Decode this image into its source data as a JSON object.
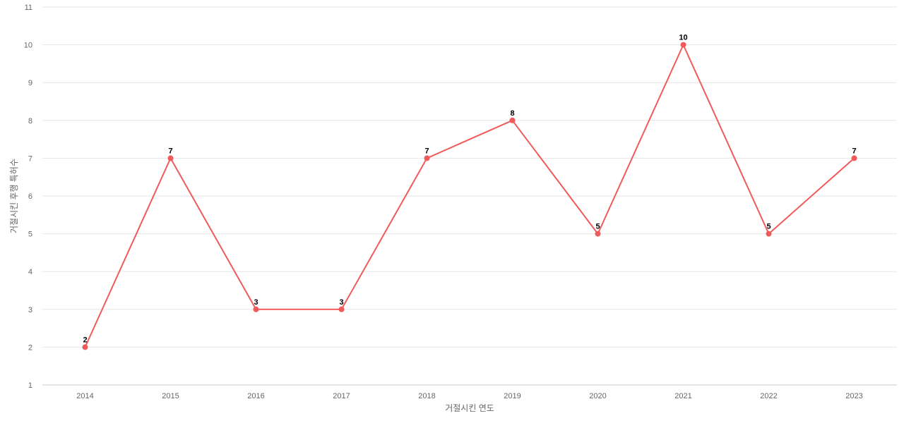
{
  "chart_data": {
    "type": "line",
    "title": "",
    "xlabel": "거절시킨 연도",
    "ylabel": "거절시킨 후행 특허수",
    "categories": [
      "2014",
      "2015",
      "2016",
      "2017",
      "2018",
      "2019",
      "2020",
      "2021",
      "2022",
      "2023"
    ],
    "series": [
      {
        "values": [
          2,
          7,
          3,
          3,
          7,
          8,
          5,
          10,
          5,
          7
        ],
        "color": "#f05a5a"
      }
    ],
    "ylim": [
      1,
      11
    ],
    "yticks": [
      1,
      2,
      3,
      4,
      5,
      6,
      7,
      8,
      9,
      10,
      11
    ],
    "grid": true,
    "legend": "none",
    "data_labels": true
  }
}
